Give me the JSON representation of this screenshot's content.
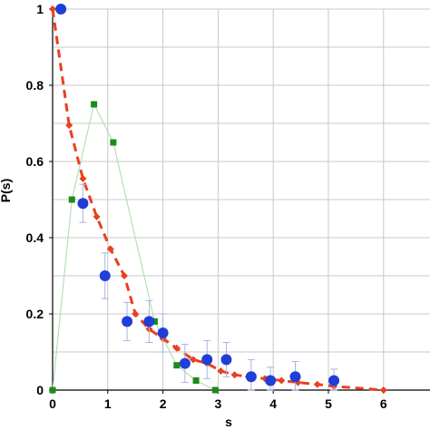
{
  "chart_data": {
    "type": "scatter",
    "xlabel": "s",
    "ylabel": "P(s)",
    "xlim": [
      0,
      7
    ],
    "ylim": [
      0,
      1
    ],
    "x_ticks": [
      "0",
      "1",
      "2",
      "3",
      "4",
      "5",
      "6"
    ],
    "y_ticks": [
      "0",
      "0.2",
      "0.4",
      "0.6",
      "0.8",
      "1"
    ],
    "grid": true,
    "series": [
      {
        "kind": "points-with-error",
        "color": "#1f3fd6",
        "error_color": "#aab4e0",
        "x": [
          0.15,
          0.55,
          0.95,
          1.35,
          1.75,
          2.0,
          2.4,
          2.8,
          3.15,
          3.6,
          3.95,
          4.4,
          5.1
        ],
        "y": [
          1.0,
          0.49,
          0.3,
          0.18,
          0.18,
          0.15,
          0.07,
          0.08,
          0.08,
          0.035,
          0.025,
          0.035,
          0.025
        ],
        "err": [
          0.0,
          0.05,
          0.06,
          0.05,
          0.055,
          0.05,
          0.05,
          0.05,
          0.045,
          0.045,
          0.035,
          0.04,
          0.03
        ]
      },
      {
        "kind": "dashed-line",
        "color": "#e84020",
        "x": [
          0,
          0.3,
          0.55,
          0.8,
          1.05,
          1.3,
          1.5,
          1.75,
          2.0,
          2.25,
          2.55,
          2.8,
          3.05,
          3.3,
          3.55,
          3.85,
          4.15,
          4.45,
          4.8,
          5.1,
          6.0
        ],
        "y": [
          1.0,
          0.695,
          0.555,
          0.455,
          0.37,
          0.3,
          0.2,
          0.16,
          0.135,
          0.11,
          0.08,
          0.07,
          0.05,
          0.04,
          0.035,
          0.03,
          0.025,
          0.02,
          0.015,
          0.01,
          0.0
        ]
      },
      {
        "kind": "line-squares",
        "color": "#1a8c1a",
        "line_color": "#b6dfb6",
        "x": [
          0,
          0.35,
          0.75,
          1.1,
          1.85,
          2.25,
          2.6,
          2.95
        ],
        "y": [
          0.0,
          0.5,
          0.75,
          0.65,
          0.18,
          0.065,
          0.025,
          0.0
        ]
      }
    ]
  }
}
